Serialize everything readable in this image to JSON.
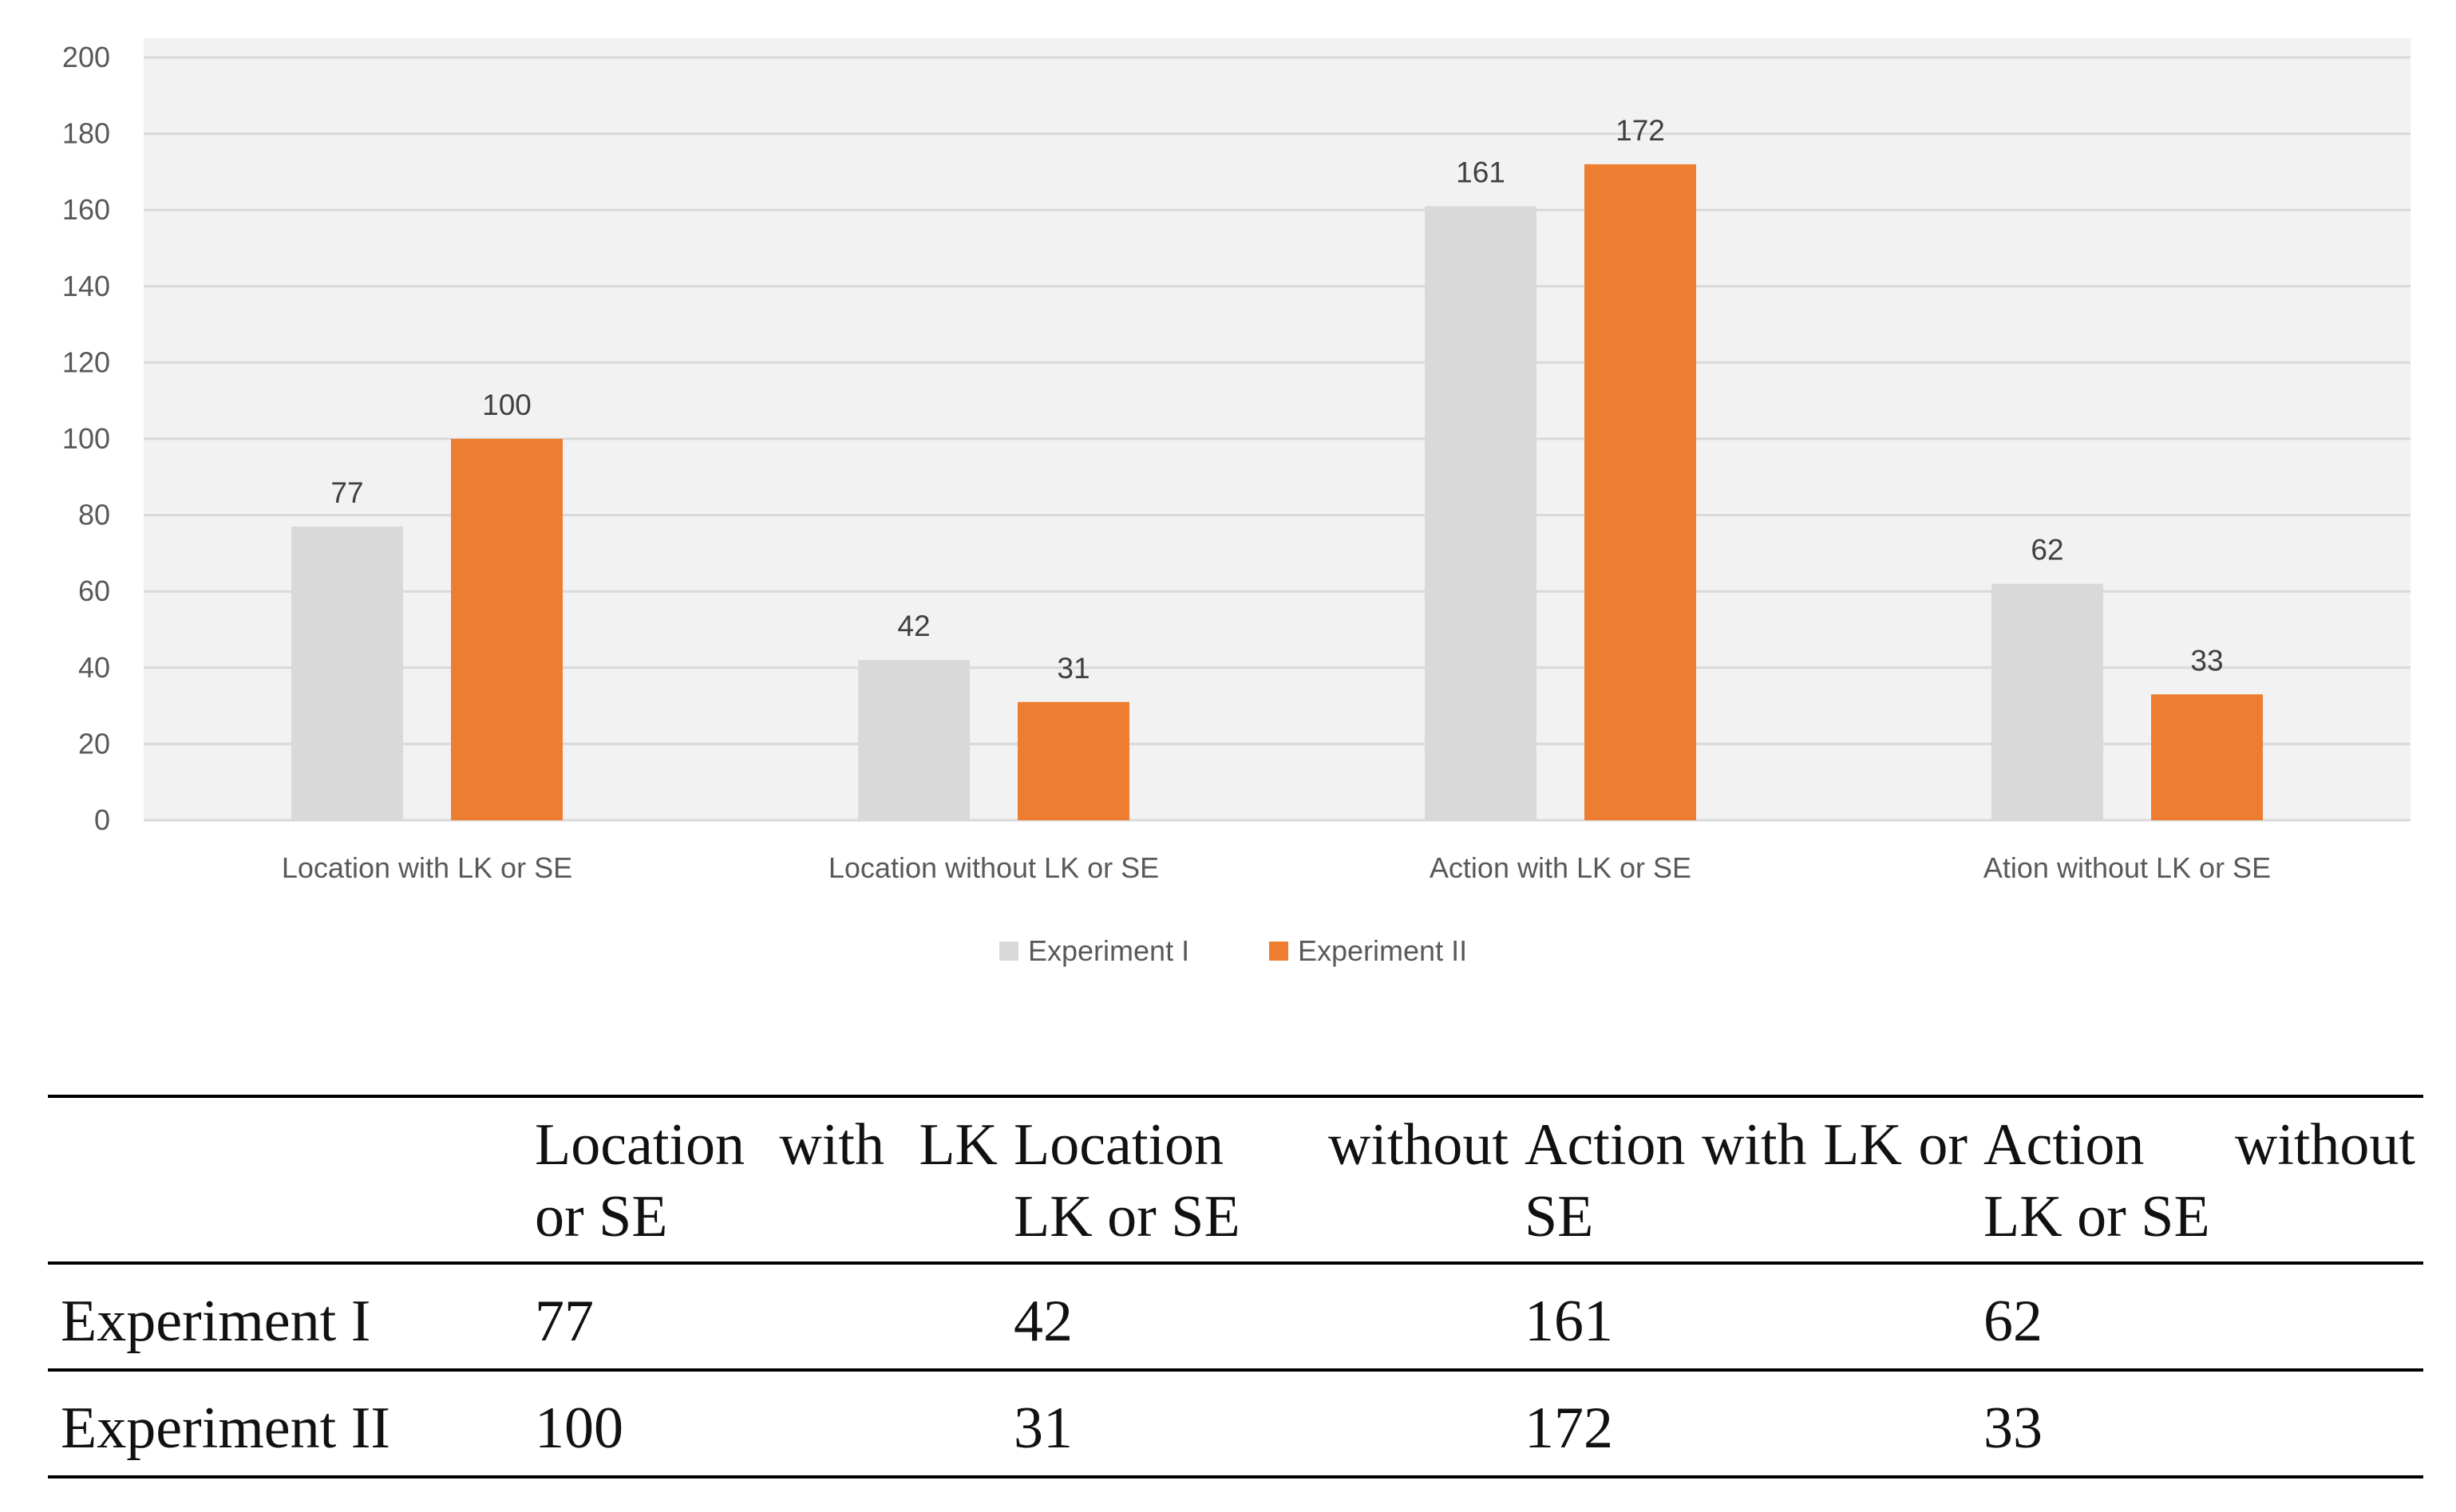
{
  "chart_data": {
    "type": "bar",
    "categories": [
      "Location with LK or SE",
      "Location without LK or SE",
      "Action with LK or SE",
      "Ation without LK or SE"
    ],
    "series": [
      {
        "name": "Experiment I",
        "values": [
          77,
          42,
          161,
          62
        ],
        "color": "#d9d9d9"
      },
      {
        "name": "Experiment II",
        "values": [
          100,
          31,
          172,
          33
        ],
        "color": "#ed7d31"
      }
    ],
    "ylim": [
      0,
      200
    ],
    "yticks": [
      0,
      20,
      40,
      60,
      80,
      100,
      120,
      140,
      160,
      180,
      200
    ],
    "grid": true,
    "legend_position": "bottom",
    "background": "#f2f2f2",
    "gridline_color": "#d9d9d9"
  },
  "table": {
    "header": [
      "",
      "Location with LK or SE",
      "Location without LK or SE",
      "Action with LK or SE",
      "Action without LK or SE"
    ],
    "rows": [
      [
        "Experiment I",
        "77",
        "42",
        "161",
        "62"
      ],
      [
        "Experiment II",
        "100",
        "31",
        "172",
        "33"
      ]
    ]
  }
}
